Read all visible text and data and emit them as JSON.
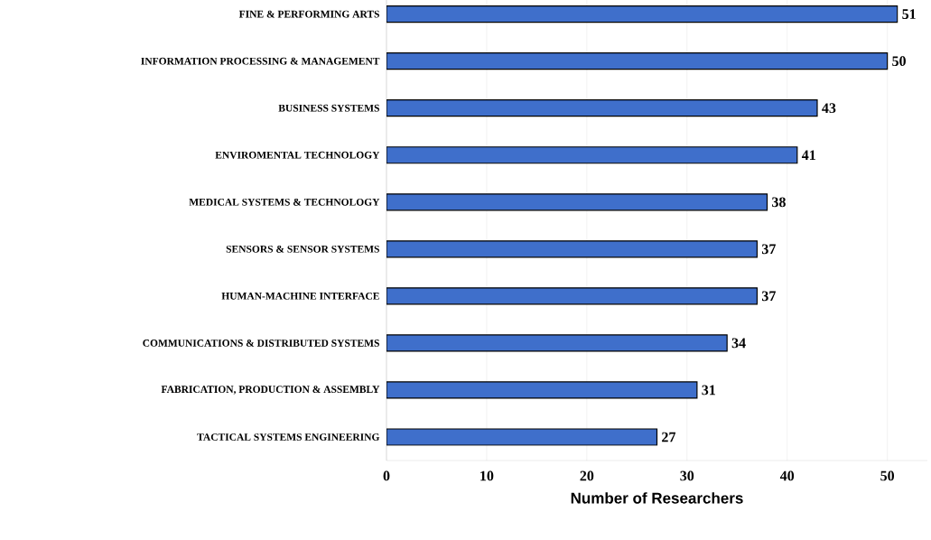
{
  "chart_data": {
    "type": "bar",
    "orientation": "horizontal",
    "xlabel": "Number of Researchers",
    "categories": [
      "FINE & PERFORMING ARTS",
      "INFORMATION PROCESSING & MANAGEMENT",
      "BUSINESS SYSTEMS",
      "ENVIROMENTAL TECHNOLOGY",
      "MEDICAL SYSTEMS & TECHNOLOGY",
      "SENSORS & SENSOR SYSTEMS",
      "HUMAN-MACHINE INTERFACE",
      "COMMUNICATIONS & DISTRIBUTED SYSTEMS",
      "FABRICATION, PRODUCTION & ASSEMBLY",
      "TACTICAL SYSTEMS ENGINEERING"
    ],
    "values": [
      51,
      50,
      43,
      41,
      38,
      37,
      37,
      34,
      31,
      27
    ],
    "color": "#3f6fcb",
    "xlim": [
      0,
      54
    ],
    "xticks": [
      0,
      10,
      20,
      30,
      40,
      50
    ],
    "grid": "x",
    "data_labels": true
  }
}
